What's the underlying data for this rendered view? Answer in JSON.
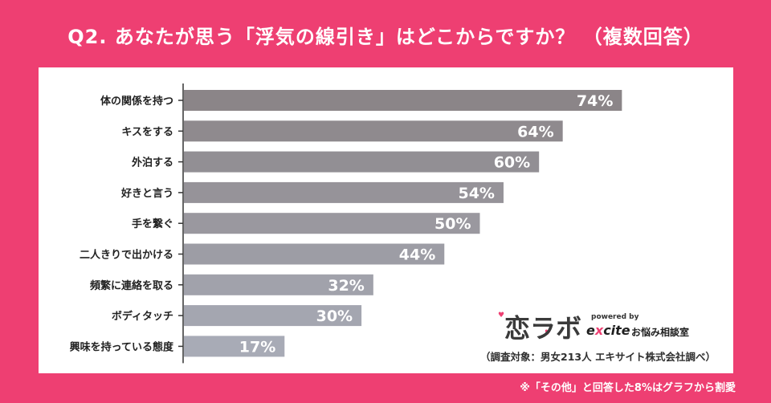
{
  "title": "Q2. あなたが思う「浮気の線引き」はどこからですか？ （複数回答）",
  "chart_data": {
    "type": "bar",
    "orientation": "horizontal",
    "title": "Q2. あなたが思う「浮気の線引き」はどこからですか？ （複数回答）",
    "categories": [
      "体の関係を持つ",
      "キスをする",
      "外泊する",
      "好きと言う",
      "手を繋ぐ",
      "二人きりで出かける",
      "頻繁に連絡を取る",
      "ボディタッチ",
      "興味を持っている態度"
    ],
    "values": [
      74,
      64,
      60,
      54,
      50,
      44,
      32,
      30,
      17
    ],
    "unit": "%",
    "xlim": [
      0,
      100
    ],
    "xlabel": "",
    "ylabel": ""
  },
  "logo": {
    "name": "恋ラボ",
    "powered_by": "powered by",
    "brand_prefix": "e",
    "brand_x": "x",
    "brand_suffix": "cite",
    "sub": "お悩み相談室"
  },
  "survey_note": "（調査対象：男女213人 エキサイト株式会社調べ）",
  "footnote": "※「その他」と回答した8%はグラフから割愛",
  "colors": {
    "background": "#EE3F72",
    "bar_top": "#8B8588",
    "bar_bottom": "#A8ABB6",
    "axis": "#333333",
    "label_text": "#222222",
    "value_text": "#ffffff"
  }
}
